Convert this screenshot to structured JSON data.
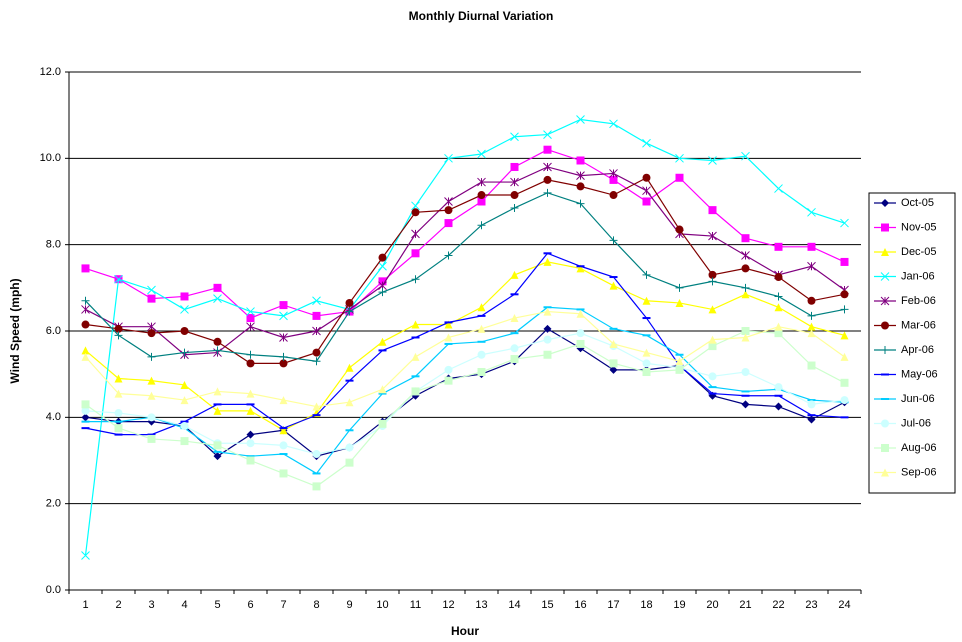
{
  "chart_data": {
    "type": "line",
    "title": "Monthly Diurnal Variation",
    "x_label": "Hour",
    "y_label": "Wind Speed (mph)",
    "categories": [
      1,
      2,
      3,
      4,
      5,
      6,
      7,
      8,
      9,
      10,
      11,
      12,
      13,
      14,
      15,
      16,
      17,
      18,
      19,
      20,
      21,
      22,
      23,
      24
    ],
    "ylim": [
      0,
      12
    ],
    "yticks": [
      {
        "value": 0,
        "label": "0.0"
      },
      {
        "value": 2,
        "label": "2.0"
      },
      {
        "value": 4,
        "label": "4.0"
      },
      {
        "value": 6,
        "label": "6.0"
      },
      {
        "value": 8,
        "label": "8.0"
      },
      {
        "value": 10,
        "label": "10.0"
      },
      {
        "value": 12,
        "label": "12.0"
      }
    ],
    "grid": true,
    "legend": "right",
    "series": [
      {
        "name": "Oct-05",
        "color": "#000080",
        "marker": "diamond",
        "values": [
          4.0,
          3.9,
          3.9,
          3.8,
          3.1,
          3.6,
          3.7,
          3.1,
          3.3,
          3.9,
          4.5,
          4.9,
          5.0,
          5.3,
          6.05,
          5.6,
          5.1,
          5.1,
          5.2,
          4.5,
          4.3,
          4.25,
          3.95,
          4.35
        ]
      },
      {
        "name": "Nov-05",
        "color": "#ff00ff",
        "marker": "square",
        "values": [
          7.45,
          7.2,
          6.75,
          6.8,
          7.0,
          6.3,
          6.6,
          6.35,
          6.45,
          7.15,
          7.8,
          8.5,
          9.0,
          9.8,
          10.2,
          9.95,
          9.5,
          9.0,
          9.55,
          8.8,
          8.15,
          7.95,
          7.95,
          7.6
        ]
      },
      {
        "name": "Dec-05",
        "color": "#ffff00",
        "marker": "triangle",
        "values": [
          5.55,
          4.9,
          4.85,
          4.75,
          4.15,
          4.15,
          3.7,
          4.1,
          5.15,
          5.75,
          6.15,
          6.15,
          6.55,
          7.3,
          7.6,
          7.45,
          7.05,
          6.7,
          6.65,
          6.5,
          6.85,
          6.55,
          6.1,
          5.9
        ]
      },
      {
        "name": "Jan-06",
        "color": "#00ffff",
        "marker": "x",
        "values": [
          0.8,
          7.2,
          6.95,
          6.5,
          6.75,
          6.45,
          6.35,
          6.7,
          6.5,
          7.5,
          8.9,
          10.0,
          10.1,
          10.5,
          10.55,
          10.9,
          10.8,
          10.35,
          10.0,
          9.95,
          10.05,
          9.3,
          8.75,
          8.5
        ]
      },
      {
        "name": "Feb-06",
        "color": "#800080",
        "marker": "star",
        "values": [
          6.5,
          6.1,
          6.1,
          5.45,
          5.5,
          6.1,
          5.85,
          6.0,
          6.5,
          7.05,
          8.25,
          9.0,
          9.45,
          9.45,
          9.8,
          9.6,
          9.65,
          9.25,
          8.25,
          8.2,
          7.75,
          7.3,
          7.5,
          6.95
        ]
      },
      {
        "name": "Mar-06",
        "color": "#800000",
        "marker": "circle",
        "values": [
          6.15,
          6.05,
          5.95,
          6.0,
          5.75,
          5.25,
          5.25,
          5.5,
          6.65,
          7.7,
          8.75,
          8.8,
          9.15,
          9.15,
          9.5,
          9.35,
          9.15,
          9.55,
          8.35,
          7.3,
          7.45,
          7.25,
          6.7,
          6.85
        ]
      },
      {
        "name": "Apr-06",
        "color": "#008080",
        "marker": "plus",
        "values": [
          6.7,
          5.9,
          5.4,
          5.5,
          5.55,
          5.45,
          5.4,
          5.3,
          6.45,
          6.9,
          7.2,
          7.75,
          8.45,
          8.85,
          9.2,
          8.95,
          8.1,
          7.3,
          7.0,
          7.15,
          7.0,
          6.8,
          6.35,
          6.5
        ]
      },
      {
        "name": "May-06",
        "color": "#0000ff",
        "marker": "dash",
        "values": [
          3.75,
          3.6,
          3.6,
          3.9,
          4.3,
          4.3,
          3.75,
          4.05,
          4.85,
          5.55,
          5.85,
          6.2,
          6.35,
          6.85,
          7.8,
          7.5,
          7.25,
          6.3,
          5.2,
          4.55,
          4.5,
          4.5,
          4.05,
          4.0
        ]
      },
      {
        "name": "Jun-06",
        "color": "#00ccff",
        "marker": "dash",
        "values": [
          3.9,
          3.9,
          4.0,
          3.75,
          3.2,
          3.1,
          3.15,
          2.7,
          3.7,
          4.55,
          4.95,
          5.7,
          5.75,
          5.95,
          6.55,
          6.5,
          6.05,
          5.9,
          5.45,
          4.7,
          4.6,
          4.65,
          4.4,
          4.35
        ]
      },
      {
        "name": "Jul-06",
        "color": "#ccffff",
        "marker": "circle",
        "values": [
          4.15,
          4.1,
          4.0,
          3.8,
          3.4,
          3.4,
          3.35,
          3.15,
          3.3,
          3.8,
          4.6,
          5.1,
          5.45,
          5.6,
          5.8,
          5.95,
          5.65,
          5.25,
          5.15,
          4.95,
          5.05,
          4.7,
          4.3,
          4.4
        ]
      },
      {
        "name": "Aug-06",
        "color": "#ccffcc",
        "marker": "square",
        "values": [
          4.3,
          3.75,
          3.5,
          3.45,
          3.35,
          3.0,
          2.7,
          2.4,
          2.95,
          3.85,
          4.6,
          4.85,
          5.05,
          5.35,
          5.45,
          5.7,
          5.25,
          5.05,
          5.1,
          5.65,
          6.0,
          5.95,
          5.2,
          4.8
        ]
      },
      {
        "name": "Sep-06",
        "color": "#ffff99",
        "marker": "triangle",
        "values": [
          5.4,
          4.55,
          4.5,
          4.4,
          4.6,
          4.55,
          4.4,
          4.25,
          4.35,
          4.65,
          5.4,
          5.85,
          6.05,
          6.3,
          6.45,
          6.4,
          5.7,
          5.5,
          5.3,
          5.8,
          5.85,
          6.1,
          5.95,
          5.4
        ]
      }
    ]
  }
}
